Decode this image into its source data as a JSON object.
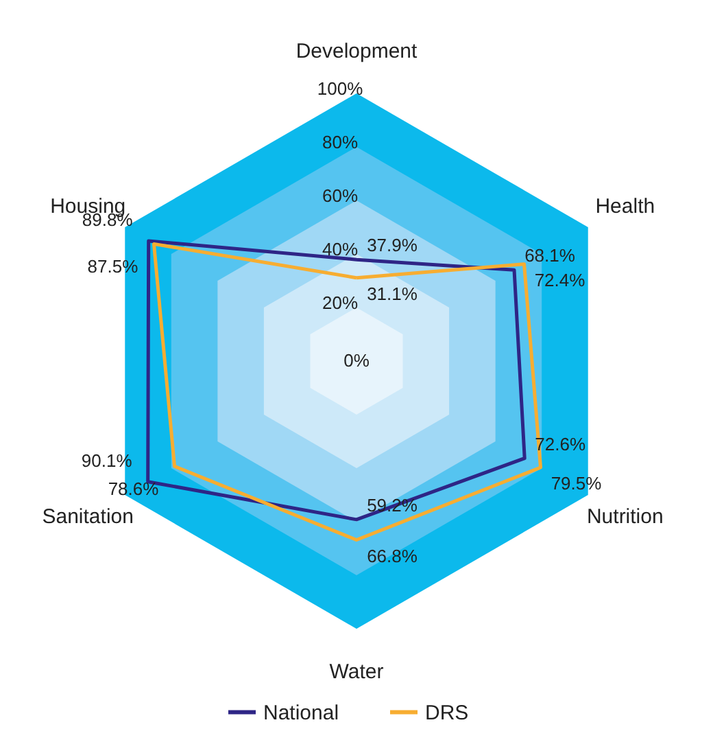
{
  "chart_data": {
    "type": "radar",
    "categories": [
      "Development",
      "Health",
      "Nutrition",
      "Water",
      "Sanitation",
      "Housing"
    ],
    "series": [
      {
        "name": "National",
        "color": "#2e2586",
        "values": [
          37.9,
          68.1,
          72.6,
          59.2,
          90.1,
          89.8
        ],
        "value_labels": [
          "37.9%",
          "68.1%",
          "72.6%",
          "59.2%",
          "90.1%",
          "89.8%"
        ]
      },
      {
        "name": "DRS",
        "color": "#f7ad31",
        "values": [
          31.1,
          72.4,
          79.5,
          66.8,
          78.6,
          87.5
        ],
        "value_labels": [
          "31.1%",
          "72.4%",
          "79.5%",
          "66.8%",
          "78.6%",
          "87.5%"
        ]
      }
    ],
    "ylim": [
      0,
      100
    ],
    "yticks": [
      {
        "value": 0,
        "label": "0%"
      },
      {
        "value": 20,
        "label": "20%"
      },
      {
        "value": 40,
        "label": "40%"
      },
      {
        "value": 60,
        "label": "60%"
      },
      {
        "value": 80,
        "label": "80%"
      },
      {
        "value": 100,
        "label": "100%"
      }
    ],
    "grid": true,
    "legend": "bottom"
  }
}
